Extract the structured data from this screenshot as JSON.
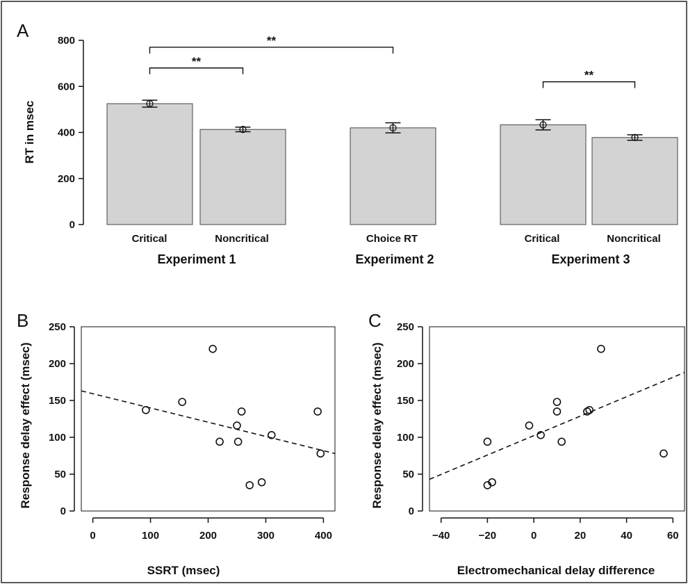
{
  "chart_data": [
    {
      "panel": "A",
      "type": "bar",
      "ylabel": "RT in msec",
      "ylim": [
        0,
        800
      ],
      "yticks": [
        0,
        200,
        400,
        600,
        800
      ],
      "bar_color": "#d3d3d3",
      "categories": [
        "Critical",
        "Noncritical",
        "Choice RT",
        "Critical",
        "Noncritical"
      ],
      "groups": [
        "Experiment 1",
        "Experiment 2",
        "Experiment 3"
      ],
      "values": [
        525,
        413,
        420,
        433,
        378
      ],
      "errors": [
        15,
        10,
        22,
        22,
        12
      ],
      "significance": [
        {
          "from": 0,
          "to": 1,
          "label": "**",
          "level": 680
        },
        {
          "from": 0,
          "to": 2,
          "label": "**",
          "level": 770
        },
        {
          "from": 3,
          "to": 4,
          "label": "**",
          "level": 620
        }
      ]
    },
    {
      "panel": "B",
      "type": "scatter",
      "xlabel": "SSRT (msec)",
      "ylabel": "Response delay effect (msec)",
      "xlim": [
        -20,
        420
      ],
      "ylim": [
        0,
        250
      ],
      "xticks": [
        0,
        100,
        200,
        300,
        400
      ],
      "yticks": [
        0,
        50,
        100,
        150,
        200,
        250
      ],
      "points": [
        [
          92,
          137
        ],
        [
          155,
          148
        ],
        [
          208,
          220
        ],
        [
          220,
          94
        ],
        [
          250,
          116
        ],
        [
          252,
          94
        ],
        [
          258,
          135
        ],
        [
          272,
          35
        ],
        [
          293,
          39
        ],
        [
          310,
          103
        ],
        [
          390,
          135
        ],
        [
          395,
          78
        ]
      ],
      "trend_line": {
        "style": "dashed",
        "x": [
          -20,
          420
        ],
        "y": [
          163,
          78
        ]
      }
    },
    {
      "panel": "C",
      "type": "scatter",
      "xlabel": "Electromechanical delay  difference",
      "ylabel": "Response delay effect (msec)",
      "xlim": [
        -45,
        65
      ],
      "ylim": [
        0,
        250
      ],
      "xticks": [
        -40,
        -20,
        0,
        20,
        40,
        60
      ],
      "yticks": [
        0,
        50,
        100,
        150,
        200,
        250
      ],
      "points": [
        [
          -20,
          94
        ],
        [
          -20,
          35
        ],
        [
          -18,
          39
        ],
        [
          -2,
          116
        ],
        [
          3,
          103
        ],
        [
          10,
          148
        ],
        [
          10,
          135
        ],
        [
          12,
          94
        ],
        [
          23,
          135
        ],
        [
          24,
          137
        ],
        [
          29,
          220
        ],
        [
          56,
          78
        ]
      ],
      "trend_line": {
        "style": "dashed",
        "x": [
          -45,
          65
        ],
        "y": [
          43,
          188
        ]
      }
    }
  ]
}
